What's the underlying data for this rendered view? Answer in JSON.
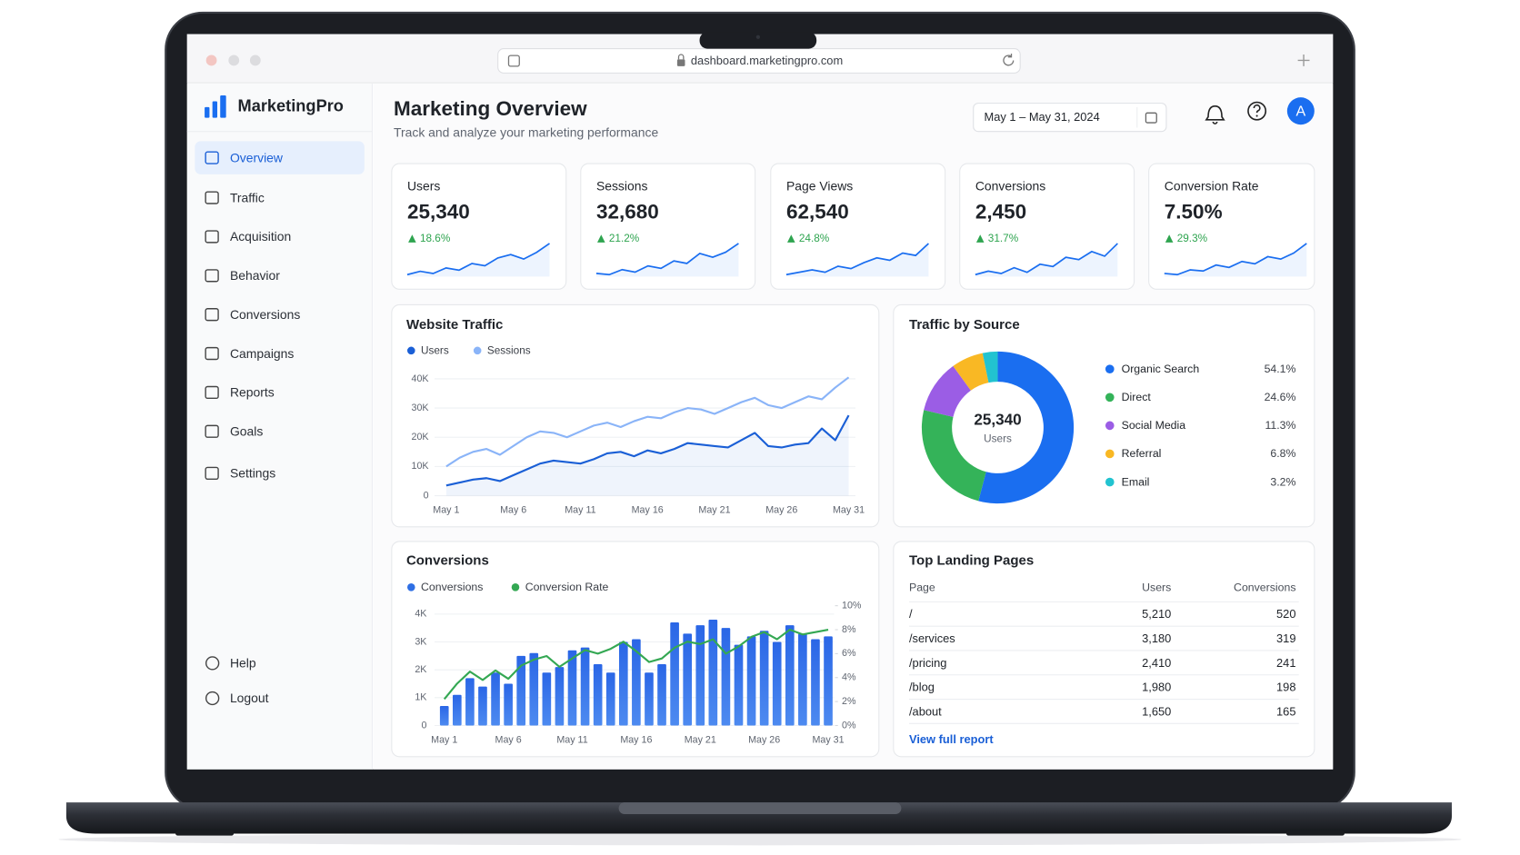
{
  "browser": {
    "url": "dashboard.marketingpro.com"
  },
  "sidebar": {
    "brand": "MarketingPro",
    "nav": [
      "Overview",
      "Traffic",
      "Acquisition",
      "Behavior",
      "Conversions",
      "Campaigns",
      "Reports",
      "Goals",
      "Settings"
    ],
    "footer_nav": [
      "Help",
      "Logout"
    ]
  },
  "header": {
    "title": "Marketing Overview",
    "subtitle": "Track and analyze your marketing performance",
    "date_range": "May 1 – May 31, 2024",
    "avatar": "A"
  },
  "kpis": [
    {
      "label": "Users",
      "value": "25,340",
      "change": "18.6%",
      "trend": [
        12,
        15,
        13,
        18,
        16,
        22,
        20,
        27,
        30,
        26,
        32,
        40
      ]
    },
    {
      "label": "Sessions",
      "value": "32,680",
      "change": "21.2%",
      "trend": [
        14,
        13,
        17,
        15,
        20,
        18,
        24,
        22,
        30,
        27,
        31,
        38
      ]
    },
    {
      "label": "Page Views",
      "value": "62,540",
      "change": "24.8%",
      "trend": [
        12,
        14,
        16,
        14,
        19,
        17,
        22,
        26,
        24,
        30,
        28,
        38
      ]
    },
    {
      "label": "Conversions",
      "value": "2,450",
      "change": "31.7%",
      "trend": [
        13,
        16,
        14,
        19,
        15,
        22,
        20,
        28,
        26,
        33,
        29,
        40
      ]
    },
    {
      "label": "Conversion Rate",
      "value": "7.50%",
      "change": "29.3%",
      "trend": [
        14,
        13,
        17,
        16,
        21,
        19,
        24,
        22,
        28,
        26,
        31,
        39
      ]
    }
  ],
  "website_traffic": {
    "type": "line",
    "title": "Website Traffic",
    "categories": [
      "May 1",
      null,
      null,
      null,
      null,
      "May 6",
      null,
      null,
      null,
      null,
      "May 11",
      null,
      null,
      null,
      null,
      "May 16",
      null,
      null,
      null,
      null,
      "May 21",
      null,
      null,
      null,
      null,
      "May 26",
      null,
      null,
      null,
      null,
      "May 31"
    ],
    "series": [
      {
        "name": "Users",
        "color": "#1a5fd6",
        "values": [
          3500,
          4500,
          5500,
          6000,
          5000,
          7000,
          9000,
          11000,
          12000,
          11500,
          11000,
          12500,
          14500,
          15000,
          13500,
          15500,
          14500,
          16000,
          18000,
          17500,
          17000,
          16500,
          19000,
          21500,
          17000,
          16500,
          17500,
          18000,
          23000,
          19000,
          27500
        ]
      },
      {
        "name": "Sessions",
        "color": "#8ab4f8",
        "values": [
          10000,
          13000,
          15000,
          16000,
          14000,
          17000,
          20000,
          22000,
          21500,
          20000,
          22000,
          24000,
          25000,
          23500,
          25500,
          27000,
          26500,
          28500,
          30000,
          29500,
          28000,
          30000,
          32000,
          33500,
          31000,
          30000,
          32000,
          34000,
          33000,
          37000,
          40500
        ]
      }
    ],
    "ylim": [
      0,
      40000
    ],
    "yticks": [
      0,
      {
        "value": 10000,
        "label": "10K"
      },
      {
        "value": 20000,
        "label": "20K"
      },
      {
        "value": 30000,
        "label": "30K"
      },
      {
        "value": 40000,
        "label": "40K"
      }
    ],
    "grid": true
  },
  "traffic_by_source": {
    "type": "pie",
    "title": "Traffic by Source",
    "center_value": "25,340",
    "center_label": "Users",
    "categories": [
      "Organic Search",
      "Direct",
      "Social Media",
      "Referral",
      "Email"
    ],
    "values": [
      54.1,
      24.6,
      11.3,
      6.8,
      3.2
    ],
    "value_labels": [
      "54.1%",
      "24.6%",
      "11.3%",
      "6.8%",
      "3.2%"
    ],
    "colors": [
      "#1a6ef0",
      "#34b359",
      "#9b5de5",
      "#f9b824",
      "#22c3d0"
    ]
  },
  "conversions": {
    "type": "bar",
    "title": "Conversions",
    "categories": [
      "May 1",
      null,
      null,
      null,
      null,
      "May 6",
      null,
      null,
      null,
      null,
      "May 11",
      null,
      null,
      null,
      null,
      "May 16",
      null,
      null,
      null,
      null,
      "May 21",
      null,
      null,
      null,
      null,
      "May 26",
      null,
      null,
      null,
      null,
      "May 31"
    ],
    "series": [
      {
        "name": "Conversions",
        "color": "#2f6fe4",
        "values": [
          700,
          1100,
          1700,
          1400,
          1900,
          1500,
          2500,
          2600,
          1900,
          2100,
          2700,
          2800,
          2200,
          1900,
          3000,
          3100,
          1900,
          2200,
          3700,
          3300,
          3600,
          3800,
          3500,
          2900,
          3200,
          3400,
          3000,
          3600,
          3300,
          3100,
          3200
        ]
      },
      {
        "name": "Conversion Rate",
        "color": "#34a853",
        "axis": "y2",
        "values": [
          2.2,
          3.5,
          4.5,
          3.8,
          4.6,
          3.9,
          5.0,
          5.5,
          5.8,
          4.9,
          5.6,
          6.3,
          6.0,
          6.4,
          7.0,
          6.2,
          5.3,
          5.6,
          6.5,
          7.0,
          6.8,
          7.2,
          6.0,
          6.6,
          7.4,
          7.8,
          7.2,
          8.0,
          7.6,
          7.8,
          8.0
        ]
      }
    ],
    "ylim": [
      0,
      4300
    ],
    "yticks": [
      0,
      {
        "value": 1000,
        "label": "1K"
      },
      {
        "value": 2000,
        "label": "2K"
      },
      {
        "value": 3000,
        "label": "3K"
      },
      {
        "value": 4000,
        "label": "4K"
      }
    ],
    "y2lim": [
      0,
      10
    ],
    "y2ticks": [
      {
        "value": 0,
        "label": "0%"
      },
      {
        "value": 2,
        "label": "2%"
      },
      {
        "value": 4,
        "label": "4%"
      },
      {
        "value": 6,
        "label": "6%"
      },
      {
        "value": 8,
        "label": "8%"
      },
      {
        "value": 10,
        "label": "10%"
      }
    ],
    "grid": true
  },
  "top_landing_pages": {
    "title": "Top Landing Pages",
    "columns": [
      "Page",
      "Users",
      "Conversions"
    ],
    "rows": [
      [
        "/",
        "5,210",
        "520"
      ],
      [
        "/services",
        "3,180",
        "319"
      ],
      [
        "/pricing",
        "2,410",
        "241"
      ],
      [
        "/blog",
        "1,980",
        "198"
      ],
      [
        "/about",
        "1,650",
        "165"
      ]
    ],
    "link": "View full report"
  }
}
